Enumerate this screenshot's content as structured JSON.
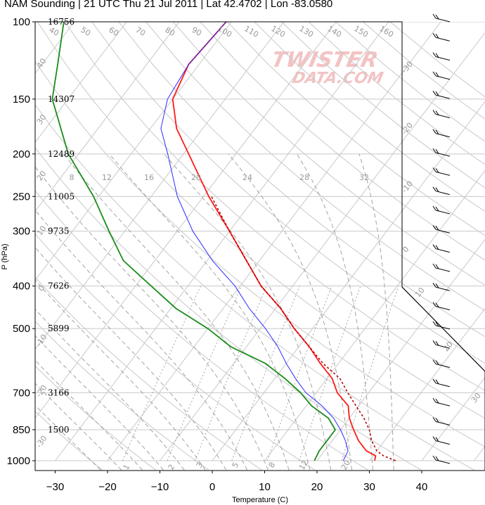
{
  "title": "NAM Sounding | 21 UTC Thu 21 Jul 2011 | Lat 42.4702 | Lon -83.0580",
  "watermark": {
    "line1": "TWISTER",
    "line2": "DATA.COM"
  },
  "colors": {
    "temperature": "#ff1a1a",
    "dewpoint": "#1a8c1a",
    "parcel": "#b30000",
    "virtual": "#2b2bff",
    "grid": "#c8c8c8",
    "guides": "#9a9a9a",
    "watermark": "#f3c3c3"
  },
  "axes": {
    "xlabel": "Temperature (C)",
    "ylabel": "P (hPa)",
    "x_ticks": [
      "−30",
      "−20",
      "−10",
      "0",
      "10",
      "20",
      "30",
      "40"
    ],
    "p_ticks": [
      "100",
      "150",
      "200",
      "250",
      "300",
      "400",
      "500",
      "700",
      "850",
      "1000"
    ],
    "height_labels": [
      "16756",
      "14307",
      "12489",
      "11005",
      "9735",
      "7626",
      "5899",
      "3166",
      "1500"
    ]
  },
  "guides": {
    "isotherm_labels": [
      "40",
      "50",
      "60",
      "70",
      "80",
      "90",
      "100",
      "110",
      "120",
      "130",
      "140",
      "150",
      "160"
    ],
    "mixing_ratio_labels": [
      "8",
      "12",
      "16",
      "20",
      "24",
      "28",
      "32"
    ],
    "mixing_ratio_low_labels": [
      "1",
      "2",
      "3",
      "5",
      "8",
      "12",
      "20"
    ],
    "right_labels": [
      "-30",
      "-20",
      "-10",
      "0",
      "10",
      "20",
      "30"
    ],
    "left_labels": [
      "40",
      "30",
      "20",
      "10",
      "0",
      "-10",
      "-20",
      "-30"
    ]
  },
  "chart_data": {
    "type": "line",
    "title": "NAM Sounding | 21 UTC Thu 21 Jul 2011 | Lat 42.4702 | Lon -83.0580",
    "xlabel": "Temperature (C)",
    "ylabel": "P (hPa)",
    "y_scale": "log (reversed)",
    "xlim": [
      -35,
      52
    ],
    "ylim": [
      1000,
      100
    ],
    "grid": true,
    "series": [
      {
        "name": "Temperature",
        "points": [
          [
            1000,
            31
          ],
          [
            975,
            30.5
          ],
          [
            950,
            28
          ],
          [
            900,
            25
          ],
          [
            850,
            22.5
          ],
          [
            800,
            20
          ],
          [
            750,
            18
          ],
          [
            700,
            14
          ],
          [
            650,
            11
          ],
          [
            600,
            6.5
          ],
          [
            550,
            2
          ],
          [
            500,
            -3.5
          ],
          [
            450,
            -9
          ],
          [
            400,
            -16
          ],
          [
            350,
            -22.5
          ],
          [
            300,
            -30
          ],
          [
            250,
            -39
          ],
          [
            200,
            -49
          ],
          [
            175,
            -55
          ],
          [
            150,
            -60
          ],
          [
            125,
            -62
          ],
          [
            100,
            -61
          ]
        ]
      },
      {
        "name": "Dewpoint",
        "points": [
          [
            1000,
            19.5
          ],
          [
            950,
            19
          ],
          [
            900,
            19
          ],
          [
            850,
            19
          ],
          [
            800,
            16
          ],
          [
            750,
            11
          ],
          [
            700,
            7
          ],
          [
            650,
            2
          ],
          [
            600,
            -4
          ],
          [
            550,
            -13
          ],
          [
            500,
            -20
          ],
          [
            450,
            -29
          ],
          [
            400,
            -37
          ],
          [
            350,
            -46
          ],
          [
            300,
            -53
          ],
          [
            250,
            -61
          ],
          [
            200,
            -72
          ],
          [
            150,
            -83
          ],
          [
            125,
            -87
          ],
          [
            100,
            -92
          ]
        ]
      },
      {
        "name": "Virtual temperature",
        "points": [
          [
            1000,
            25
          ],
          [
            950,
            24.5
          ],
          [
            900,
            22.5
          ],
          [
            850,
            20
          ],
          [
            800,
            17
          ],
          [
            750,
            13
          ],
          [
            700,
            8
          ],
          [
            650,
            4
          ],
          [
            600,
            0
          ],
          [
            550,
            -4
          ],
          [
            500,
            -9
          ],
          [
            450,
            -15
          ],
          [
            400,
            -21
          ],
          [
            350,
            -29
          ],
          [
            300,
            -37
          ],
          [
            250,
            -45
          ],
          [
            200,
            -53
          ],
          [
            175,
            -58
          ],
          [
            150,
            -61
          ],
          [
            125,
            -62
          ],
          [
            100,
            -61
          ]
        ]
      },
      {
        "name": "Parcel",
        "points": [
          [
            1000,
            35
          ],
          [
            975,
            32
          ],
          [
            950,
            30
          ],
          [
            900,
            27.5
          ],
          [
            850,
            25.5
          ],
          [
            800,
            22.8
          ],
          [
            750,
            19.5
          ],
          [
            700,
            16
          ],
          [
            650,
            12.5
          ],
          [
            600,
            7
          ],
          [
            550,
            2
          ],
          [
            500,
            -3.5
          ],
          [
            450,
            -9
          ],
          [
            400,
            -16
          ],
          [
            350,
            -22.5
          ],
          [
            300,
            -30
          ],
          [
            250,
            -38.5
          ]
        ]
      }
    ],
    "wind_barb_count": 24
  }
}
